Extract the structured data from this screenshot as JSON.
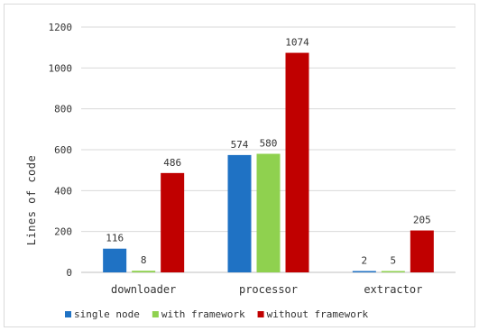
{
  "chart_data": {
    "type": "bar",
    "categories": [
      "downloader",
      "processor",
      "extractor"
    ],
    "series": [
      {
        "name": "single node",
        "values": [
          116,
          574,
          2
        ],
        "color": "#1f72c4"
      },
      {
        "name": "with framework",
        "values": [
          8,
          580,
          5
        ],
        "color": "#8fd14f"
      },
      {
        "name": "without framework",
        "values": [
          486,
          1074,
          205
        ],
        "color": "#c00000"
      }
    ],
    "data_labels": [
      [
        "116",
        "574",
        "2"
      ],
      [
        "8",
        "580",
        "5"
      ],
      [
        "486",
        "1074",
        "205"
      ]
    ],
    "ylabel": "Lines of code",
    "ylim": [
      0,
      1200
    ],
    "yticks": [
      0,
      200,
      400,
      600,
      800,
      1000,
      1200
    ],
    "ytick_labels": [
      "0",
      "200",
      "400",
      "600",
      "800",
      "1000",
      "1200"
    ],
    "grid": true,
    "legend_position": "bottom"
  }
}
